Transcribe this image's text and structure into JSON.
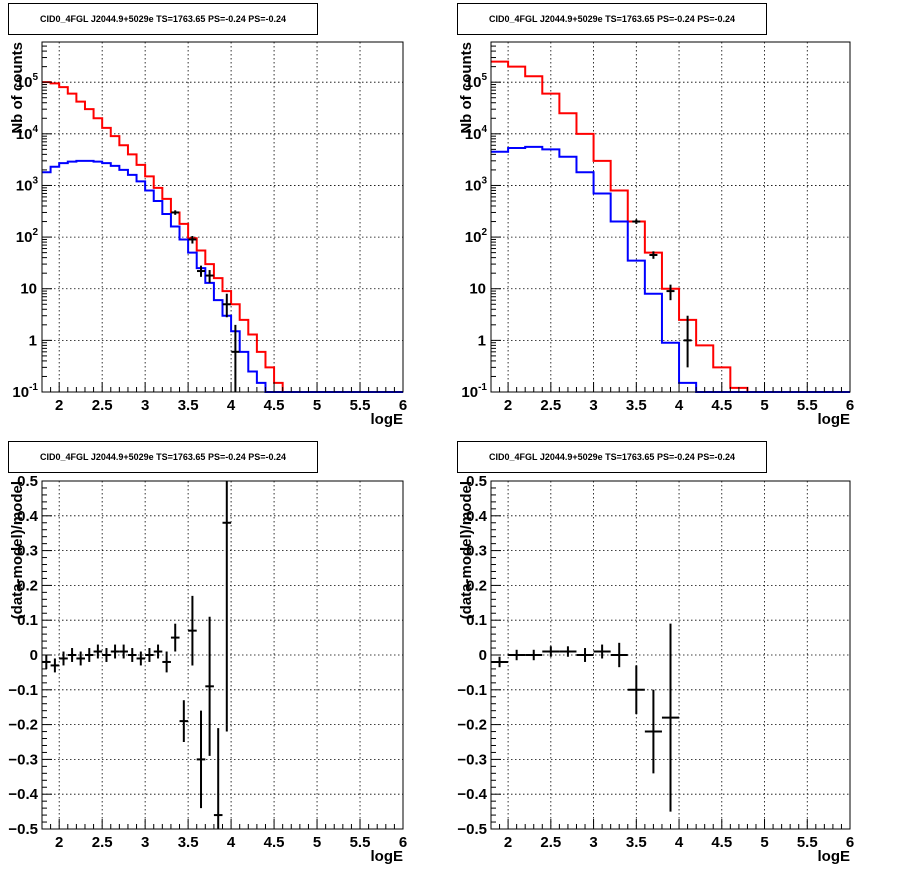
{
  "chart_data": [
    {
      "type": "line",
      "title": "CID0_4FGL J2044.9+5029e TS=1763.65 PS=-0.24 PS=-0.24",
      "xlabel": "logE",
      "ylabel": "Nb of counts",
      "xlim": [
        1.8,
        6.0
      ],
      "ylim": [
        0.1,
        600000
      ],
      "yscale": "log",
      "grid": true,
      "xticks": [
        "2",
        "2.5",
        "3",
        "3.5",
        "4",
        "4.5",
        "5",
        "5.5",
        "6"
      ],
      "yticks": [
        "10^-1",
        "1",
        "10",
        "10^2",
        "10^3",
        "10^4",
        "10^5"
      ],
      "bin_edges": [
        1.8,
        1.9,
        2.0,
        2.1,
        2.2,
        2.3,
        2.4,
        2.5,
        2.6,
        2.7,
        2.8,
        2.9,
        3.0,
        3.1,
        3.2,
        3.3,
        3.4,
        3.5,
        3.6,
        3.7,
        3.8,
        3.9,
        4.0,
        4.1,
        4.2,
        4.3,
        4.4,
        4.5,
        4.6,
        4.7,
        4.8,
        4.9,
        5.0,
        5.1,
        5.2,
        5.3,
        5.4,
        5.5,
        5.6,
        5.7,
        5.8,
        5.9,
        6.0
      ],
      "series": [
        {
          "color": "#ff0000",
          "values": [
            100000,
            95000,
            80000,
            60000,
            42000,
            30000,
            20000,
            13000,
            9000,
            6000,
            4000,
            2500,
            1500,
            900,
            550,
            300,
            180,
            95,
            55,
            30,
            16,
            9,
            5,
            2.5,
            1.3,
            0.6,
            0.3,
            0.15,
            0.1,
            0.1,
            0.1,
            0.1,
            0.1,
            0.1,
            0.1,
            0.1,
            0.1,
            0.1,
            0.1,
            0.1,
            0.1,
            0.1
          ]
        },
        {
          "color": "#0000ff",
          "values": [
            1800,
            2300,
            2700,
            2900,
            3000,
            3000,
            2900,
            2700,
            2400,
            2000,
            1600,
            1200,
            800,
            500,
            280,
            160,
            90,
            50,
            25,
            13,
            6,
            3,
            1.5,
            0.6,
            0.25,
            0.15,
            0.1,
            0.1,
            0.1,
            0.1,
            0.1,
            0.1,
            0.1,
            0.1,
            0.1,
            0.1,
            0.1,
            0.1,
            0.1,
            0.1,
            0.1,
            0.1
          ]
        }
      ],
      "data_points": [
        {
          "x": 3.35,
          "y": 300,
          "lo": 270,
          "hi": 330
        },
        {
          "x": 3.55,
          "y": 90,
          "lo": 75,
          "hi": 105
        },
        {
          "x": 3.65,
          "y": 22,
          "lo": 17,
          "hi": 28
        },
        {
          "x": 3.75,
          "y": 18,
          "lo": 13,
          "hi": 23
        },
        {
          "x": 3.95,
          "y": 5,
          "lo": 2.8,
          "hi": 8
        },
        {
          "x": 4.05,
          "y": 0.6,
          "lo": 0.1,
          "hi": 2.0
        }
      ]
    },
    {
      "type": "line",
      "title": "CID0_4FGL J2044.9+5029e TS=1763.65 PS=-0.24 PS=-0.24",
      "xlabel": "logE",
      "ylabel": "Nb of counts",
      "xlim": [
        1.8,
        6.0
      ],
      "ylim": [
        0.1,
        600000
      ],
      "yscale": "log",
      "grid": true,
      "xticks": [
        "2",
        "2.5",
        "3",
        "3.5",
        "4",
        "4.5",
        "5",
        "5.5",
        "6"
      ],
      "yticks": [
        "10^-1",
        "1",
        "10",
        "10^2",
        "10^3",
        "10^4",
        "10^5"
      ],
      "bin_edges": [
        1.8,
        2.0,
        2.2,
        2.4,
        2.6,
        2.8,
        3.0,
        3.2,
        3.4,
        3.6,
        3.8,
        4.0,
        4.2,
        4.4,
        4.6,
        4.8,
        5.0,
        5.2,
        5.4,
        5.6,
        5.8,
        6.0
      ],
      "series": [
        {
          "color": "#ff0000",
          "values": [
            250000,
            200000,
            130000,
            60000,
            25000,
            10000,
            3000,
            800,
            200,
            50,
            10,
            2.5,
            0.8,
            0.3,
            0.12,
            0.1,
            0.1,
            0.1,
            0.1,
            0.1,
            0.1
          ]
        },
        {
          "color": "#0000ff",
          "values": [
            4500,
            5300,
            5600,
            5000,
            3600,
            1800,
            700,
            200,
            35,
            8,
            0.9,
            0.15,
            0.1,
            0.1,
            0.1,
            0.1,
            0.1,
            0.1,
            0.1,
            0.1,
            0.1
          ]
        }
      ],
      "data_points": [
        {
          "x": 3.5,
          "y": 200,
          "lo": 180,
          "hi": 220
        },
        {
          "x": 3.7,
          "y": 45,
          "lo": 38,
          "hi": 53
        },
        {
          "x": 3.9,
          "y": 9,
          "lo": 6,
          "hi": 12
        },
        {
          "x": 4.1,
          "y": 1,
          "lo": 0.3,
          "hi": 3.0
        }
      ]
    },
    {
      "type": "scatter",
      "title": "CID0_4FGL J2044.9+5029e TS=1763.65 PS=-0.24 PS=-0.24",
      "xlabel": "logE",
      "ylabel": "(data-model)/model",
      "xlim": [
        1.8,
        6.0
      ],
      "ylim": [
        -0.5,
        0.5
      ],
      "grid": true,
      "xticks": [
        "2",
        "2.5",
        "3",
        "3.5",
        "4",
        "4.5",
        "5",
        "5.5",
        "6"
      ],
      "yticks": [
        "-0.5",
        "-0.4",
        "-0.3",
        "-0.2",
        "-0.1",
        "0",
        "0.1",
        "0.2",
        "0.3",
        "0.4",
        "0.5"
      ],
      "xerr": 0.05,
      "points": [
        {
          "x": 1.85,
          "y": -0.02,
          "err": 0.02
        },
        {
          "x": 1.95,
          "y": -0.03,
          "err": 0.02
        },
        {
          "x": 2.05,
          "y": -0.01,
          "err": 0.02
        },
        {
          "x": 2.15,
          "y": 0.0,
          "err": 0.02
        },
        {
          "x": 2.25,
          "y": -0.01,
          "err": 0.02
        },
        {
          "x": 2.35,
          "y": 0.0,
          "err": 0.02
        },
        {
          "x": 2.45,
          "y": 0.01,
          "err": 0.02
        },
        {
          "x": 2.55,
          "y": 0.0,
          "err": 0.02
        },
        {
          "x": 2.65,
          "y": 0.01,
          "err": 0.02
        },
        {
          "x": 2.75,
          "y": 0.01,
          "err": 0.02
        },
        {
          "x": 2.85,
          "y": 0.0,
          "err": 0.02
        },
        {
          "x": 2.95,
          "y": -0.01,
          "err": 0.02
        },
        {
          "x": 3.05,
          "y": 0.0,
          "err": 0.02
        },
        {
          "x": 3.15,
          "y": 0.01,
          "err": 0.02
        },
        {
          "x": 3.25,
          "y": -0.02,
          "err": 0.03
        },
        {
          "x": 3.35,
          "y": 0.05,
          "err": 0.04
        },
        {
          "x": 3.45,
          "y": -0.19,
          "err": 0.06
        },
        {
          "x": 3.55,
          "y": 0.07,
          "err": 0.1
        },
        {
          "x": 3.65,
          "y": -0.3,
          "err": 0.14
        },
        {
          "x": 3.75,
          "y": -0.09,
          "err": 0.2
        },
        {
          "x": 3.85,
          "y": -0.46,
          "err": 0.25
        },
        {
          "x": 3.95,
          "y": 0.38,
          "err": 0.6
        }
      ]
    },
    {
      "type": "scatter",
      "title": "CID0_4FGL J2044.9+5029e TS=1763.65 PS=-0.24 PS=-0.24",
      "xlabel": "logE",
      "ylabel": "(data-model)/model",
      "xlim": [
        1.8,
        6.0
      ],
      "ylim": [
        -0.5,
        0.5
      ],
      "grid": true,
      "xticks": [
        "2",
        "2.5",
        "3",
        "3.5",
        "4",
        "4.5",
        "5",
        "5.5",
        "6"
      ],
      "yticks": [
        "-0.5",
        "-0.4",
        "-0.3",
        "-0.2",
        "-0.1",
        "0",
        "0.1",
        "0.2",
        "0.3",
        "0.4",
        "0.5"
      ],
      "xerr": 0.1,
      "points": [
        {
          "x": 1.9,
          "y": -0.02,
          "err": 0.015
        },
        {
          "x": 2.1,
          "y": 0.0,
          "err": 0.015
        },
        {
          "x": 2.3,
          "y": 0.0,
          "err": 0.015
        },
        {
          "x": 2.5,
          "y": 0.01,
          "err": 0.015
        },
        {
          "x": 2.7,
          "y": 0.01,
          "err": 0.015
        },
        {
          "x": 2.9,
          "y": 0.0,
          "err": 0.02
        },
        {
          "x": 3.1,
          "y": 0.01,
          "err": 0.02
        },
        {
          "x": 3.3,
          "y": 0.0,
          "err": 0.035
        },
        {
          "x": 3.5,
          "y": -0.1,
          "err": 0.07
        },
        {
          "x": 3.7,
          "y": -0.22,
          "err": 0.12
        },
        {
          "x": 3.9,
          "y": -0.18,
          "err": 0.27
        }
      ]
    }
  ]
}
